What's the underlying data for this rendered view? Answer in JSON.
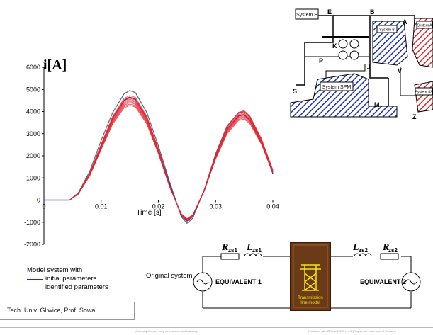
{
  "chart_data": {
    "type": "line",
    "ylabel": "i[A]",
    "xlabel": "Time [s]",
    "xlim": [
      0,
      0.04
    ],
    "ylim": [
      -2000,
      6000
    ],
    "xticks": [
      0,
      0.01,
      0.02,
      0.03,
      0.04
    ],
    "yticks": [
      -2000,
      -1000,
      0,
      1000,
      2000,
      3000,
      4000,
      5000,
      6000
    ],
    "grid": false,
    "legend_title": "Model system with",
    "series": [
      {
        "name": "initial parameters",
        "color": "#1c2fbf",
        "x": [
          0,
          0.0045,
          0.006,
          0.008,
          0.01,
          0.012,
          0.014,
          0.015,
          0.016,
          0.018,
          0.02,
          0.022,
          0.024,
          0.025,
          0.026,
          0.028,
          0.03,
          0.032,
          0.034,
          0.035,
          0.036,
          0.038,
          0.04
        ],
        "y": [
          0,
          0,
          300,
          1200,
          2500,
          3700,
          4500,
          4650,
          4550,
          3700,
          2300,
          700,
          -700,
          -950,
          -750,
          450,
          2000,
          3200,
          3800,
          3850,
          3600,
          2600,
          1200
        ]
      },
      {
        "name": "identified parameters",
        "color": "#e8242c",
        "x": [
          0,
          0.0045,
          0.006,
          0.008,
          0.01,
          0.012,
          0.014,
          0.015,
          0.016,
          0.018,
          0.02,
          0.022,
          0.024,
          0.025,
          0.026,
          0.028,
          0.03,
          0.032,
          0.034,
          0.035,
          0.036,
          0.038,
          0.04
        ],
        "y": [
          0,
          0,
          280,
          1150,
          2400,
          3600,
          4380,
          4500,
          4420,
          3600,
          2200,
          600,
          -650,
          -880,
          -700,
          420,
          1950,
          3150,
          3780,
          3850,
          3620,
          2650,
          1300
        ]
      },
      {
        "name": "Original system",
        "color": "#666666",
        "x": [
          0,
          0.0045,
          0.006,
          0.008,
          0.01,
          0.012,
          0.014,
          0.015,
          0.016,
          0.018,
          0.02,
          0.022,
          0.024,
          0.025,
          0.026,
          0.028,
          0.03,
          0.032,
          0.034,
          0.035,
          0.036,
          0.038,
          0.04
        ],
        "y": [
          0,
          0,
          320,
          1300,
          2700,
          3950,
          4800,
          4950,
          4850,
          3950,
          2450,
          800,
          -750,
          -1050,
          -820,
          450,
          2100,
          3350,
          3950,
          4000,
          3750,
          2700,
          1200
        ]
      }
    ]
  },
  "legend": {
    "title": "Model system with",
    "initial": "initial parameters",
    "identified": "identified parameters",
    "original": "Original system"
  },
  "circuit": {
    "r1": "R",
    "r1_sub": "zs1",
    "l1": "L",
    "l1_sub": "zs1",
    "l2": "L",
    "l2_sub": "zs2",
    "r2": "R",
    "r2_sub": "zs2",
    "equiv1": "EQUIVALENT 1",
    "equiv2": "EQUIVALENT 2",
    "tower_caption_1": "Transmission",
    "tower_caption_2": "line model"
  },
  "diagram": {
    "labels": [
      "System E",
      "System B",
      "System A",
      "System SPM",
      "System SZ",
      "E",
      "B",
      "A",
      "K",
      "P",
      "S",
      "J",
      "V",
      "M",
      "Z"
    ]
  },
  "footer": {
    "credit": "Tech. Univ. Gliwice, Prof. Sowa",
    "tiny_left": "University license - only for research and teaching",
    "tiny_right": "Produced with ZESmodTECH v1.0 (Registered trademark of Siemens"
  }
}
